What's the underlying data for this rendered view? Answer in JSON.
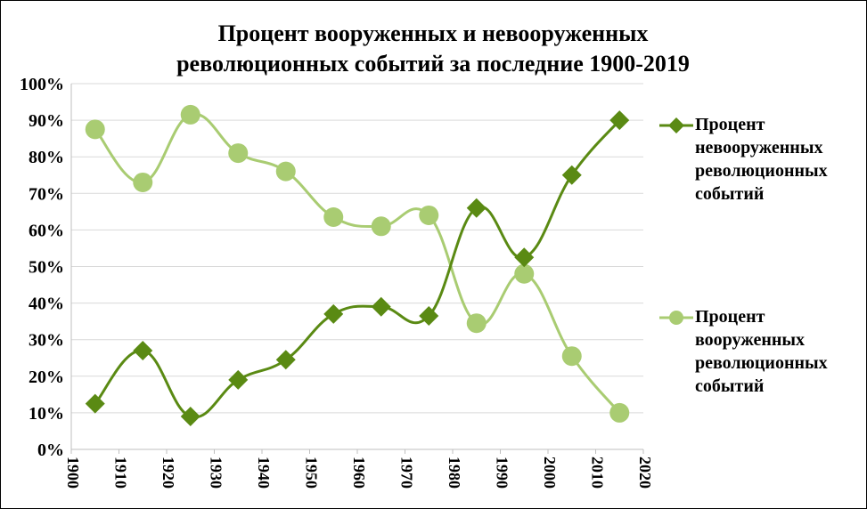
{
  "chart_data": {
    "type": "line",
    "title_lines": [
      "Процент вооруженных и невооруженных",
      "революционных событий за последние 1900-2019"
    ],
    "x": [
      1905,
      1915,
      1925,
      1935,
      1945,
      1955,
      1965,
      1975,
      1985,
      1995,
      2005,
      2015
    ],
    "xlim": [
      1900,
      2020
    ],
    "x_ticks": [
      "1900",
      "1910",
      "1920",
      "1930",
      "1940",
      "1950",
      "1960",
      "1970",
      "1980",
      "1990",
      "2000",
      "2010",
      "2020"
    ],
    "ylim": [
      0,
      100
    ],
    "y_ticks": [
      "0%",
      "10%",
      "20%",
      "30%",
      "40%",
      "50%",
      "60%",
      "70%",
      "80%",
      "90%",
      "100%"
    ],
    "grid": "horizontal",
    "legend_position": "right",
    "smooth": true,
    "series": [
      {
        "name": "Процент невооруженных революционных событий",
        "name_lines": [
          "Процент",
          "невооруженных",
          "революционных",
          "событий"
        ],
        "marker": "diamond",
        "color": "#5a8a13",
        "values": [
          12.5,
          27,
          9,
          19,
          24.5,
          37,
          39,
          36.5,
          66,
          52.5,
          75,
          90
        ]
      },
      {
        "name": "Процент вооруженных революционных событий",
        "name_lines": [
          "Процент",
          "вооруженных",
          "революционных",
          "событий"
        ],
        "marker": "circle",
        "color": "#a9cc72",
        "values": [
          87.5,
          73,
          91.5,
          81,
          76,
          63.5,
          61,
          64,
          34.5,
          48,
          25.5,
          10
        ]
      }
    ]
  }
}
